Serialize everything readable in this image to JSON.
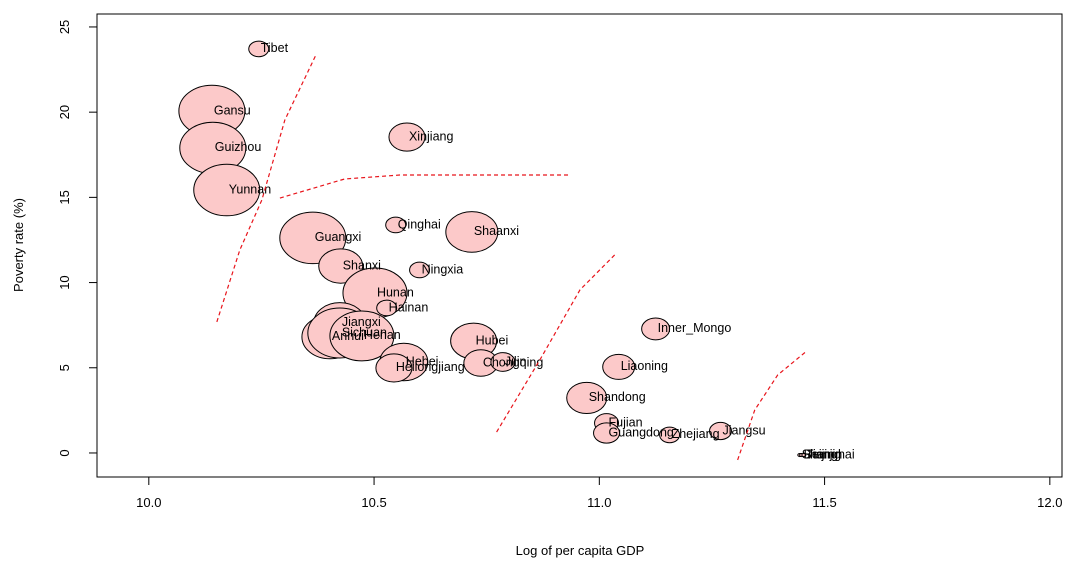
{
  "chart_data": {
    "type": "scatter",
    "x_label": "Log of per capita GDP",
    "y_label": "Poverty rate (%)",
    "xlim": [
      9.885,
      12.027
    ],
    "ylim": [
      -1.41,
      25.76
    ],
    "xticks": [
      {
        "value": 10,
        "label": "10.0"
      },
      10.5,
      {
        "value": 11,
        "label": "11.0"
      },
      11.5,
      {
        "value": 12,
        "label": "12.0"
      }
    ],
    "yticks": [
      0,
      5,
      10,
      15,
      20,
      25
    ],
    "color": "#fcc9c9",
    "series": [
      {
        "labels": [
          "Tibet",
          "Gansu",
          "Guizhou",
          "Yunnan",
          "Xinjiang",
          "Qinghai",
          "Shaanxi",
          "Guangxi",
          "Shanxi",
          "Ningxia",
          "Hunan",
          "Hainan",
          "Jiangxi",
          "Anhui",
          "Sichuan",
          "Henan",
          "Hubei",
          "Hebei",
          "Heilongjiang",
          "Chongqing",
          "Jilin",
          "Liaoning",
          "Inner_Mongo",
          "Shandong",
          "Fujian",
          "Guangdong",
          "Zhejiang",
          "Jiangsu",
          "Shanghai",
          "Beijing",
          "Tianjin"
        ],
        "x": [
          10.244,
          10.14,
          10.142,
          10.173,
          10.573,
          10.548,
          10.717,
          10.364,
          10.426,
          10.601,
          10.502,
          10.528,
          10.424,
          10.402,
          10.424,
          10.473,
          10.721,
          10.566,
          10.544,
          10.737,
          10.786,
          11.043,
          11.125,
          10.972,
          11.016,
          11.016,
          11.156,
          11.269,
          11.445,
          11.449,
          11.454
        ],
        "values": [
          23.71,
          20.07,
          17.9,
          15.43,
          18.54,
          13.38,
          12.97,
          12.62,
          10.97,
          10.74,
          9.39,
          8.51,
          7.63,
          6.81,
          7.04,
          6.87,
          6.57,
          5.34,
          4.99,
          5.28,
          5.34,
          5.05,
          7.28,
          3.23,
          1.76,
          1.17,
          1.06,
          1.29,
          -0.12,
          -0.12,
          -0.12
        ],
        "sizes": [
          10,
          33,
          33,
          33,
          18,
          10,
          26,
          33,
          22,
          10,
          32,
          10,
          26,
          28,
          32,
          32,
          23,
          24,
          18,
          17,
          12,
          16,
          14,
          20,
          12,
          13,
          10,
          11,
          2,
          2,
          2
        ]
      }
    ],
    "curves": {
      "color": "#e8141b",
      "lines": [
        {
          "x": [
            10.151,
            10.202,
            10.251,
            10.302,
            10.371
          ],
          "y": [
            7.69,
            11.91,
            14.85,
            19.54,
            23.36
          ]
        },
        {
          "x": [
            10.291,
            10.435,
            10.557,
            10.935
          ],
          "y": [
            14.96,
            16.08,
            16.31,
            16.31
          ]
        },
        {
          "x": [
            10.772,
            10.868,
            10.957,
            11.034
          ],
          "y": [
            1.23,
            5.46,
            9.57,
            11.62
          ]
        },
        {
          "x": [
            11.307,
            11.345,
            11.396,
            11.458
          ],
          "y": [
            -0.41,
            2.52,
            4.58,
            5.93
          ]
        }
      ]
    }
  }
}
